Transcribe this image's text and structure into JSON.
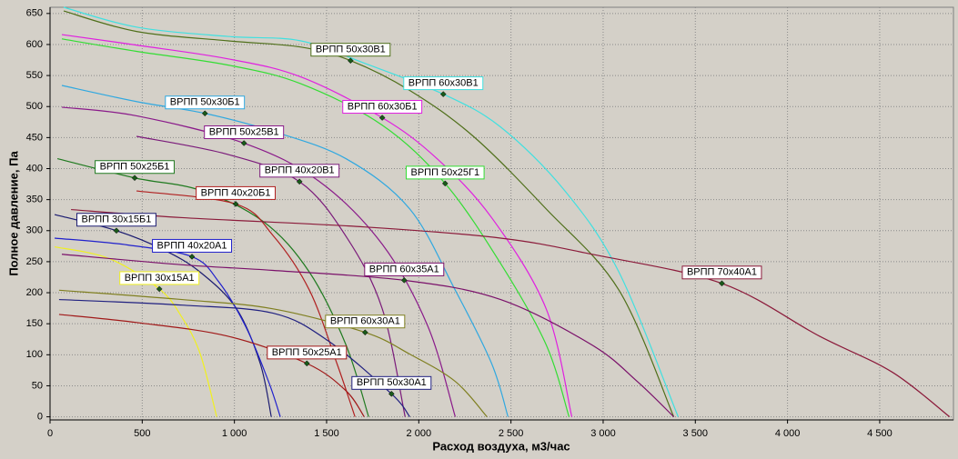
{
  "chart_data": {
    "type": "line",
    "x_label": "Расход воздуха, м3/час",
    "y_label": "Полное давление, Па",
    "xlim": [
      0,
      4900
    ],
    "ylim": [
      -5,
      660
    ],
    "grid": true,
    "xticks": [
      0,
      500,
      {
        "value": 1000,
        "label": "1 000"
      },
      {
        "value": 1500,
        "label": "1 500"
      },
      {
        "value": 2000,
        "label": "2 000"
      },
      {
        "value": 2500,
        "label": "2 500"
      },
      {
        "value": 3000,
        "label": "3 000"
      },
      {
        "value": 3500,
        "label": "3 500"
      },
      {
        "value": 4000,
        "label": "4 000"
      },
      {
        "value": 4500,
        "label": "4 500"
      }
    ],
    "yticks": [
      0,
      50,
      100,
      150,
      200,
      250,
      300,
      350,
      400,
      450,
      500,
      550,
      600,
      650
    ],
    "series": [
      {
        "name": "ВРПП 60x30В1",
        "color": "#40e0e0",
        "x": [
          74,
          469,
          963,
          1358,
          1704,
          2133,
          2444,
          2790,
          3086,
          3407
        ],
        "values": [
          660,
          628,
          613,
          606,
          570,
          520,
          467,
          365,
          233,
          0
        ],
        "marker": [
          2133,
          520
        ]
      },
      {
        "name": "ВРПП 50x30В1",
        "color": "#4f6f1a",
        "x": [
          74,
          469,
          963,
          1358,
          1630,
          1951,
          2296,
          2691,
          3086,
          3383
        ],
        "values": [
          654,
          621,
          606,
          596,
          574,
          526,
          452,
          335,
          204,
          0
        ],
        "marker": [
          1630,
          574
        ]
      },
      {
        "name": "ВРПП 60x30Б1",
        "color": "#e020e0",
        "x": [
          64,
          469,
          963,
          1358,
          1802,
          2099,
          2395,
          2691,
          2830
        ],
        "values": [
          616,
          599,
          577,
          548,
          482,
          416,
          321,
          174,
          0
        ],
        "marker": [
          1802,
          482
        ]
      },
      {
        "name": "ВРПП 50x25Г1",
        "color": "#33dd33",
        "x": [
          64,
          469,
          963,
          1358,
          1802,
          2143,
          2444,
          2691,
          2815
        ],
        "values": [
          609,
          589,
          567,
          537,
          470,
          376,
          247,
          116,
          0
        ],
        "marker": [
          2143,
          376
        ]
      },
      {
        "name": "ВРПП 50x30Б1",
        "color": "#30a8e0",
        "x": [
          64,
          469,
          840,
          1210,
          1605,
          1951,
          2198,
          2395,
          2484
        ],
        "values": [
          534,
          508,
          489,
          460,
          416,
          335,
          204,
          86,
          0
        ],
        "marker": [
          840,
          489
        ]
      },
      {
        "name": "ВРПП 50x25В1",
        "color": "#8a1a8a",
        "x": [
          64,
          469,
          1052,
          1457,
          1802,
          2049,
          2198
        ],
        "values": [
          499,
          485,
          441,
          380,
          278,
          146,
          0
        ],
        "marker": [
          1052,
          441
        ]
      },
      {
        "name": "ВРПП 40x20В1",
        "color": "#7a1a7a",
        "x": [
          469,
          963,
          1353,
          1605,
          1802,
          1926
        ],
        "values": [
          452,
          423,
          379,
          291,
          174,
          0
        ],
        "marker": [
          1353,
          379
        ]
      },
      {
        "name": "ВРПП 50x25Б1",
        "color": "#1f7a1f",
        "x": [
          40,
          459,
          815,
          1160,
          1407,
          1605,
          1728
        ],
        "values": [
          416,
          385,
          365,
          314,
          233,
          116,
          0
        ],
        "marker": [
          459,
          385
        ]
      },
      {
        "name": "ВРПП 40x20Б1",
        "color": "#b02020",
        "x": [
          469,
          1007,
          1210,
          1407,
          1556,
          1654
        ],
        "values": [
          364,
          343,
          292,
          204,
          86,
          0
        ],
        "marker": [
          1007,
          343
        ]
      },
      {
        "name": "ВРПП 30x15Б1",
        "color": "#1a1a70",
        "x": [
          25,
          360,
          617,
          815,
          1012,
          1140,
          1200
        ],
        "values": [
          326,
          300,
          269,
          233,
          174,
          86,
          0
        ],
        "marker": [
          360,
          300
        ]
      },
      {
        "name": "ВРПП 40x20А1",
        "color": "#2020cc",
        "x": [
          25,
          420,
          770,
          914,
          1062,
          1185,
          1249
        ],
        "values": [
          288,
          277,
          258,
          218,
          145,
          57,
          0
        ],
        "marker": [
          770,
          258
        ]
      },
      {
        "name": "ВРПП 30x15А1",
        "color": "#f0f020",
        "x": [
          25,
          321,
          593,
          716,
          815,
          904
        ],
        "values": [
          274,
          255,
          206,
          160,
          101,
          0
        ],
        "marker": [
          593,
          206
        ]
      },
      {
        "name": "ВРПП 70x40А1",
        "color": "#8b1a3a",
        "x": [
          114,
          716,
          1704,
          2444,
          2938,
          3644,
          4173,
          4568,
          4879
        ],
        "values": [
          334,
          321,
          306,
          288,
          262,
          215,
          130,
          72,
          0
        ],
        "marker": [
          3644,
          215
        ]
      },
      {
        "name": "ВРПП 60x35А1",
        "color": "#7a106a",
        "x": [
          64,
          716,
          1210,
          1921,
          2444,
          2938,
          3185,
          3383
        ],
        "values": [
          262,
          245,
          236,
          220,
          189,
          116,
          57,
          0
        ],
        "marker": [
          1921,
          220
        ]
      },
      {
        "name": "ВРПП 60x30А1",
        "color": "#7f7f20",
        "x": [
          49,
          716,
          1210,
          1709,
          1951,
          2198,
          2370
        ],
        "values": [
          204,
          189,
          174,
          136,
          101,
          57,
          0
        ],
        "marker": [
          1709,
          136
        ]
      },
      {
        "name": "ВРПП 50x30А1",
        "color": "#202080",
        "x": [
          49,
          716,
          1210,
          1506,
          1852,
          1951
        ],
        "values": [
          189,
          180,
          167,
          123,
          37,
          0
        ],
        "marker": [
          1852,
          37
        ]
      },
      {
        "name": "ВРПП 50x25А1",
        "color": "#a01818",
        "x": [
          49,
          469,
          963,
          1393,
          1605,
          1704
        ],
        "values": [
          165,
          152,
          130,
          86,
          42,
          0
        ],
        "marker": [
          1393,
          86
        ]
      }
    ]
  }
}
